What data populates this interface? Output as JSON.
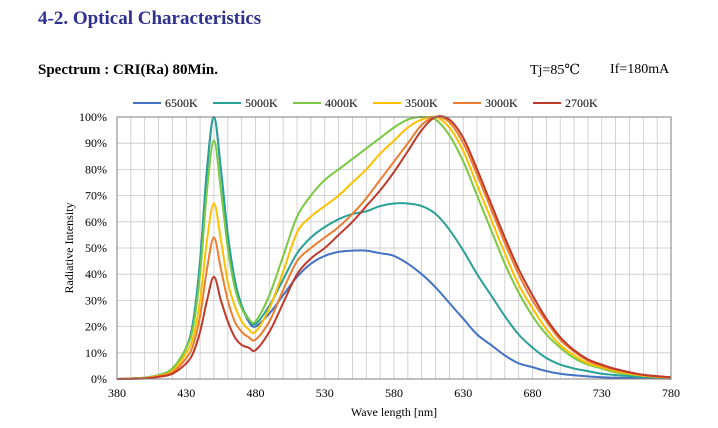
{
  "header": {
    "section_title": "4-2. Optical Characteristics",
    "spectrum_label": "Spectrum : CRI(Ra) 80Min.",
    "tj_label": "Tj=85℃",
    "if_label": "If=180mA"
  },
  "chart_data": {
    "type": "line",
    "title": "",
    "xlabel": "Wave length [nm]",
    "ylabel": "Radiative Intensity",
    "xlim": [
      380,
      780
    ],
    "ylim": [
      0,
      100
    ],
    "xticks": [
      380,
      430,
      480,
      530,
      580,
      630,
      680,
      730,
      780
    ],
    "yticks": [
      0,
      10,
      20,
      30,
      40,
      50,
      60,
      70,
      80,
      90,
      100
    ],
    "xtick_labels": [
      "380",
      "430",
      "480",
      "530",
      "580",
      "630",
      "680",
      "730",
      "780"
    ],
    "ytick_labels": [
      "0%",
      "10%",
      "20%",
      "30%",
      "40%",
      "50%",
      "60%",
      "70%",
      "80%",
      "90%",
      "100%"
    ],
    "grid": true,
    "legend_position": "top",
    "series": [
      {
        "name": "6500K",
        "color": "#4472c4",
        "points": [
          [
            380,
            0
          ],
          [
            400,
            0.5
          ],
          [
            410,
            1.5
          ],
          [
            420,
            4
          ],
          [
            430,
            12
          ],
          [
            435,
            22
          ],
          [
            440,
            45
          ],
          [
            445,
            80
          ],
          [
            450,
            100
          ],
          [
            455,
            80
          ],
          [
            460,
            55
          ],
          [
            465,
            38
          ],
          [
            470,
            28
          ],
          [
            475,
            22
          ],
          [
            480,
            20
          ],
          [
            490,
            25
          ],
          [
            500,
            32
          ],
          [
            510,
            39
          ],
          [
            520,
            44
          ],
          [
            530,
            47
          ],
          [
            540,
            48.5
          ],
          [
            550,
            49
          ],
          [
            560,
            49
          ],
          [
            570,
            48
          ],
          [
            580,
            47
          ],
          [
            590,
            44
          ],
          [
            600,
            40
          ],
          [
            610,
            35
          ],
          [
            620,
            29
          ],
          [
            630,
            23
          ],
          [
            640,
            17
          ],
          [
            650,
            13
          ],
          [
            660,
            9
          ],
          [
            670,
            6
          ],
          [
            680,
            4.5
          ],
          [
            690,
            3
          ],
          [
            700,
            2
          ],
          [
            710,
            1.4
          ],
          [
            720,
            1
          ],
          [
            730,
            0.7
          ],
          [
            740,
            0.5
          ],
          [
            760,
            0.3
          ],
          [
            780,
            0.1
          ]
        ]
      },
      {
        "name": "5000K",
        "color": "#2aa198",
        "points": [
          [
            380,
            0
          ],
          [
            400,
            0.5
          ],
          [
            410,
            1.5
          ],
          [
            420,
            4
          ],
          [
            430,
            12
          ],
          [
            435,
            22
          ],
          [
            440,
            45
          ],
          [
            445,
            80
          ],
          [
            450,
            100
          ],
          [
            455,
            80
          ],
          [
            460,
            55
          ],
          [
            465,
            38
          ],
          [
            470,
            28
          ],
          [
            475,
            23
          ],
          [
            480,
            21
          ],
          [
            490,
            28
          ],
          [
            500,
            38
          ],
          [
            510,
            48
          ],
          [
            520,
            54
          ],
          [
            530,
            58
          ],
          [
            540,
            61
          ],
          [
            550,
            63
          ],
          [
            560,
            64
          ],
          [
            570,
            66
          ],
          [
            580,
            67
          ],
          [
            590,
            67
          ],
          [
            600,
            66
          ],
          [
            610,
            63
          ],
          [
            620,
            57
          ],
          [
            630,
            49
          ],
          [
            640,
            40
          ],
          [
            650,
            32
          ],
          [
            660,
            24
          ],
          [
            670,
            17
          ],
          [
            680,
            12
          ],
          [
            690,
            8
          ],
          [
            700,
            5.5
          ],
          [
            710,
            4
          ],
          [
            720,
            3
          ],
          [
            730,
            2
          ],
          [
            740,
            1.5
          ],
          [
            760,
            0.8
          ],
          [
            780,
            0.3
          ]
        ]
      },
      {
        "name": "4000K",
        "color": "#7ac943",
        "points": [
          [
            380,
            0
          ],
          [
            400,
            0.5
          ],
          [
            410,
            1.5
          ],
          [
            420,
            4
          ],
          [
            430,
            12
          ],
          [
            435,
            20
          ],
          [
            440,
            40
          ],
          [
            445,
            72
          ],
          [
            450,
            91
          ],
          [
            455,
            72
          ],
          [
            460,
            50
          ],
          [
            465,
            35
          ],
          [
            470,
            27
          ],
          [
            475,
            23
          ],
          [
            480,
            22
          ],
          [
            490,
            32
          ],
          [
            500,
            47
          ],
          [
            510,
            62
          ],
          [
            520,
            70
          ],
          [
            530,
            76
          ],
          [
            540,
            80
          ],
          [
            550,
            84
          ],
          [
            560,
            88
          ],
          [
            570,
            92
          ],
          [
            580,
            96
          ],
          [
            590,
            99
          ],
          [
            600,
            100
          ],
          [
            610,
            99
          ],
          [
            620,
            93
          ],
          [
            630,
            83
          ],
          [
            640,
            70
          ],
          [
            650,
            57
          ],
          [
            660,
            44
          ],
          [
            670,
            33
          ],
          [
            680,
            24
          ],
          [
            690,
            17
          ],
          [
            700,
            12
          ],
          [
            710,
            8
          ],
          [
            720,
            5.5
          ],
          [
            730,
            4
          ],
          [
            740,
            2.5
          ],
          [
            760,
            1.2
          ],
          [
            780,
            0.5
          ]
        ]
      },
      {
        "name": "3500K",
        "color": "#ffc000",
        "points": [
          [
            380,
            0
          ],
          [
            400,
            0.4
          ],
          [
            410,
            1.2
          ],
          [
            420,
            3
          ],
          [
            430,
            10
          ],
          [
            435,
            16
          ],
          [
            440,
            30
          ],
          [
            445,
            53
          ],
          [
            450,
            67
          ],
          [
            455,
            53
          ],
          [
            460,
            37
          ],
          [
            465,
            28
          ],
          [
            470,
            22
          ],
          [
            475,
            19
          ],
          [
            480,
            18
          ],
          [
            490,
            27
          ],
          [
            500,
            41
          ],
          [
            510,
            56
          ],
          [
            520,
            62
          ],
          [
            530,
            66
          ],
          [
            540,
            70
          ],
          [
            550,
            75
          ],
          [
            560,
            80
          ],
          [
            570,
            86
          ],
          [
            580,
            91
          ],
          [
            590,
            96
          ],
          [
            600,
            99
          ],
          [
            610,
            100
          ],
          [
            620,
            96
          ],
          [
            630,
            87
          ],
          [
            640,
            74
          ],
          [
            650,
            61
          ],
          [
            660,
            48
          ],
          [
            670,
            36
          ],
          [
            680,
            27
          ],
          [
            690,
            19
          ],
          [
            700,
            13
          ],
          [
            710,
            9
          ],
          [
            720,
            6
          ],
          [
            730,
            4.5
          ],
          [
            740,
            3
          ],
          [
            760,
            1.3
          ],
          [
            780,
            0.5
          ]
        ]
      },
      {
        "name": "3000K",
        "color": "#ed7d31",
        "points": [
          [
            380,
            0
          ],
          [
            400,
            0.3
          ],
          [
            410,
            1
          ],
          [
            420,
            2.5
          ],
          [
            430,
            8
          ],
          [
            435,
            13
          ],
          [
            440,
            24
          ],
          [
            445,
            42
          ],
          [
            450,
            54
          ],
          [
            455,
            42
          ],
          [
            460,
            30
          ],
          [
            465,
            22
          ],
          [
            470,
            18
          ],
          [
            475,
            16
          ],
          [
            480,
            15
          ],
          [
            490,
            22
          ],
          [
            500,
            34
          ],
          [
            510,
            45
          ],
          [
            520,
            50
          ],
          [
            530,
            54
          ],
          [
            540,
            58
          ],
          [
            550,
            63
          ],
          [
            560,
            69
          ],
          [
            570,
            76
          ],
          [
            580,
            83
          ],
          [
            590,
            90
          ],
          [
            600,
            97
          ],
          [
            610,
            100
          ],
          [
            620,
            98
          ],
          [
            630,
            90
          ],
          [
            640,
            78
          ],
          [
            650,
            65
          ],
          [
            660,
            52
          ],
          [
            670,
            40
          ],
          [
            680,
            30
          ],
          [
            690,
            22
          ],
          [
            700,
            15
          ],
          [
            710,
            10.5
          ],
          [
            720,
            7
          ],
          [
            730,
            5
          ],
          [
            740,
            3.5
          ],
          [
            760,
            1.5
          ],
          [
            780,
            0.6
          ]
        ]
      },
      {
        "name": "2700K",
        "color": "#c0392b",
        "points": [
          [
            380,
            0
          ],
          [
            400,
            0.2
          ],
          [
            410,
            0.8
          ],
          [
            420,
            2
          ],
          [
            430,
            6
          ],
          [
            435,
            10
          ],
          [
            440,
            18
          ],
          [
            445,
            30
          ],
          [
            450,
            39
          ],
          [
            455,
            30
          ],
          [
            460,
            22
          ],
          [
            465,
            16
          ],
          [
            470,
            13
          ],
          [
            475,
            12
          ],
          [
            480,
            11
          ],
          [
            490,
            18
          ],
          [
            500,
            29
          ],
          [
            510,
            40
          ],
          [
            520,
            46
          ],
          [
            530,
            50
          ],
          [
            540,
            55
          ],
          [
            550,
            60
          ],
          [
            560,
            66
          ],
          [
            570,
            72
          ],
          [
            580,
            79
          ],
          [
            590,
            87
          ],
          [
            600,
            95
          ],
          [
            610,
            100
          ],
          [
            620,
            99
          ],
          [
            630,
            92
          ],
          [
            640,
            80
          ],
          [
            650,
            67
          ],
          [
            660,
            54
          ],
          [
            670,
            42
          ],
          [
            680,
            32
          ],
          [
            690,
            23
          ],
          [
            700,
            16
          ],
          [
            710,
            11
          ],
          [
            720,
            7.5
          ],
          [
            730,
            5.5
          ],
          [
            740,
            3.8
          ],
          [
            760,
            1.6
          ],
          [
            780,
            0.7
          ]
        ]
      }
    ]
  }
}
